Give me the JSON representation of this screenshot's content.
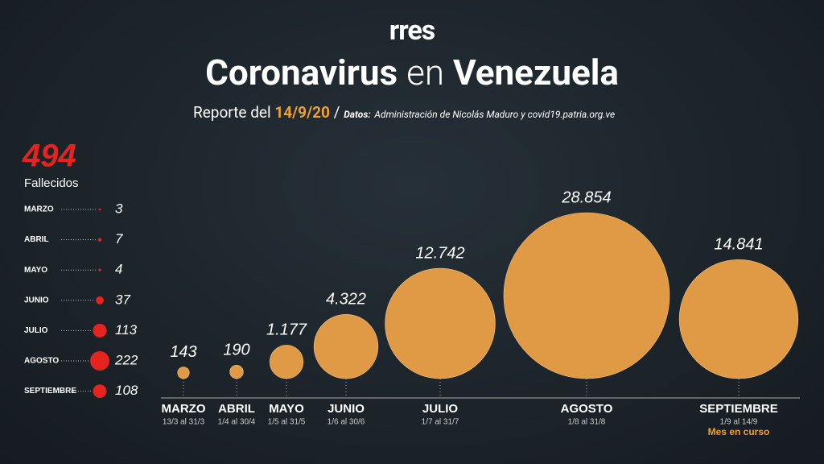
{
  "logo": "rres",
  "title": [
    "Coronavirus",
    "en",
    "Venezuela"
  ],
  "report_label": "Reporte del",
  "report_date": "14/9/20",
  "separator": "/",
  "source_label": "Datos:",
  "source": "Administración de Nicolás Maduro y covid19.patria.org.ve",
  "chart_data": [
    {
      "type": "bubble",
      "categories": [
        "MARZO",
        "ABRIL",
        "MAYO",
        "JUNIO",
        "JULIO",
        "AGOSTO",
        "SEPTIEMBRE"
      ],
      "periods": [
        "13/3 al 31/3",
        "1/4 al 30/4",
        "1/5 al 31/5",
        "1/6 al 30/6",
        "1/7 al 31/7",
        "1/8 al 31/8",
        "1/9 al 14/9"
      ],
      "values": [
        143,
        190,
        1177,
        4322,
        12742,
        28854,
        14841
      ],
      "value_labels": [
        "143",
        "190",
        "1.177",
        "4.322",
        "12.742",
        "28.854",
        "14.841"
      ],
      "color": "#e09a45",
      "note": "Mes en curso",
      "note_color": "#f0a030"
    },
    {
      "type": "dots",
      "total": 494,
      "total_label": "Fallecidos",
      "categories": [
        "MARZO",
        "ABRIL",
        "MAYO",
        "JUNIO",
        "JULIO",
        "AGOSTO",
        "SEPTIEMBRE"
      ],
      "values": [
        3,
        7,
        4,
        37,
        113,
        222,
        108
      ],
      "color": "#e52420"
    }
  ]
}
